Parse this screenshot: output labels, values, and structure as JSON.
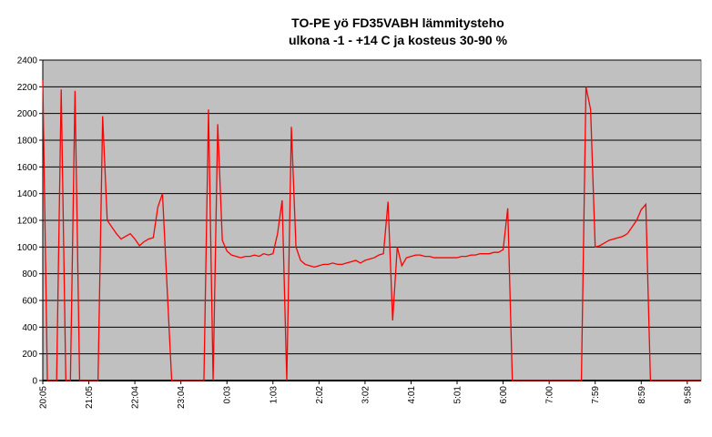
{
  "chart_data": {
    "type": "line",
    "title": "TO-PE yö FD35VABH lämmitysteho",
    "subtitle": "ulkona -1 - +14 C ja kosteus 30-90 %",
    "categories": [
      "20:05",
      null,
      null,
      null,
      null,
      null,
      null,
      null,
      null,
      null,
      "21:05",
      null,
      null,
      null,
      null,
      null,
      null,
      null,
      null,
      null,
      "22:04",
      null,
      null,
      null,
      null,
      null,
      null,
      null,
      null,
      null,
      "23:04",
      null,
      null,
      null,
      null,
      null,
      null,
      null,
      null,
      null,
      "0:03",
      null,
      null,
      null,
      null,
      null,
      null,
      null,
      null,
      null,
      "1:03",
      null,
      null,
      null,
      null,
      null,
      null,
      null,
      null,
      null,
      "2:02",
      null,
      null,
      null,
      null,
      null,
      null,
      null,
      null,
      null,
      "3:02",
      null,
      null,
      null,
      null,
      null,
      null,
      null,
      null,
      null,
      "4:01",
      null,
      null,
      null,
      null,
      null,
      null,
      null,
      null,
      null,
      "5:01",
      null,
      null,
      null,
      null,
      null,
      null,
      null,
      null,
      null,
      "6:00",
      null,
      null,
      null,
      null,
      null,
      null,
      null,
      null,
      null,
      "7:00",
      null,
      null,
      null,
      null,
      null,
      null,
      null,
      null,
      null,
      "7:59",
      null,
      null,
      null,
      null,
      null,
      null,
      null,
      null,
      null,
      "8:59",
      null,
      null,
      null,
      null,
      null,
      null,
      null,
      null,
      null,
      "9:58",
      null,
      null,
      null
    ],
    "values": [
      2250,
      0,
      0,
      0,
      2180,
      0,
      0,
      2170,
      0,
      0,
      0,
      0,
      0,
      1980,
      1200,
      1150,
      1100,
      1060,
      1080,
      1100,
      1060,
      1010,
      1040,
      1060,
      1070,
      1300,
      1400,
      700,
      0,
      0,
      0,
      0,
      0,
      0,
      0,
      0,
      2030,
      0,
      1920,
      1050,
      970,
      940,
      930,
      920,
      930,
      930,
      940,
      930,
      950,
      940,
      950,
      1100,
      1350,
      0,
      1900,
      1000,
      900,
      870,
      860,
      850,
      860,
      870,
      870,
      880,
      870,
      870,
      880,
      890,
      900,
      880,
      900,
      910,
      920,
      940,
      950,
      1340,
      450,
      1000,
      860,
      920,
      930,
      940,
      940,
      930,
      930,
      920,
      920,
      920,
      920,
      920,
      920,
      930,
      930,
      940,
      940,
      950,
      950,
      950,
      960,
      960,
      980,
      1290,
      0,
      0,
      0,
      0,
      0,
      0,
      0,
      0,
      0,
      0,
      0,
      0,
      0,
      0,
      0,
      0,
      2200,
      2030,
      1000,
      1010,
      1030,
      1050,
      1060,
      1070,
      1080,
      1100,
      1150,
      1200,
      1280,
      1320,
      0,
      0,
      0,
      0,
      0,
      0,
      0,
      0,
      0,
      0,
      0,
      0
    ],
    "color": "#ff0000",
    "ylim": [
      0,
      2400
    ],
    "yticks": [
      0,
      200,
      400,
      600,
      800,
      1000,
      1200,
      1400,
      1600,
      1800,
      2000,
      2200,
      2400
    ],
    "grid": true
  }
}
